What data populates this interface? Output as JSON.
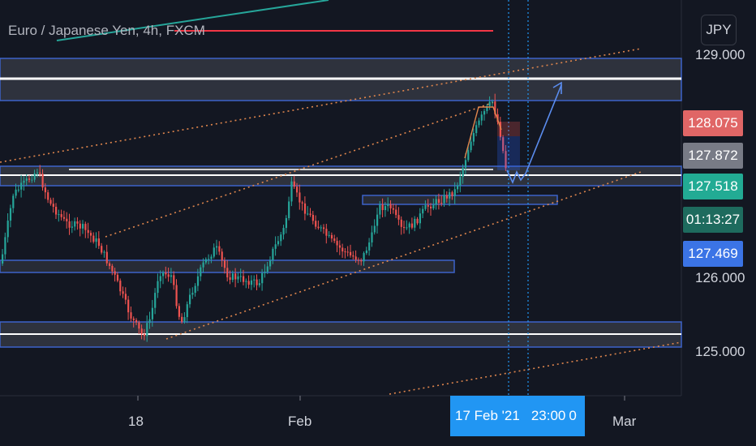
{
  "chart_header": {
    "title": "Euro / Japanese Yen, 4h, FXCM"
  },
  "currency_button": "JPY",
  "price_axis": {
    "ticks": [
      "129.000",
      "126.000",
      "125.000"
    ]
  },
  "price_tags": {
    "red": "128.075",
    "gray": "127.872",
    "teal": "127.518",
    "countdown": "01:13:27",
    "blue": "127.469"
  },
  "time_axis": {
    "ticks": [
      "18",
      "Feb",
      "Mar"
    ],
    "highlight_date": "17 Feb '21",
    "highlight_time": "23:00",
    "highlight_trailing": "0"
  },
  "colors": {
    "background": "#131722",
    "up_candle": "#26a69a",
    "down_candle": "#ef5350",
    "zone_border": "#3d63c9",
    "channel": "#e0864d",
    "tag_red": "#e06666",
    "tag_gray": "#787b86",
    "tag_teal": "#22ab94",
    "tag_blue": "#2962ff",
    "axis_highlight": "#2196f3"
  }
}
